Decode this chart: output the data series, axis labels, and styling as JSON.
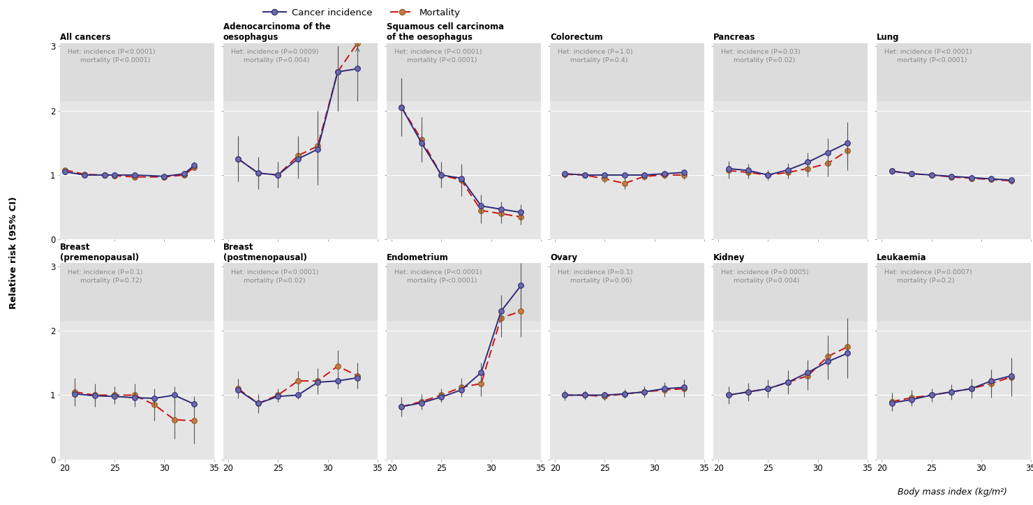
{
  "panels": [
    {
      "title": "All cancers",
      "het_text": "Het: incidence (P<0.0001)\n      mortality (P<0.0001)",
      "x": [
        20,
        22,
        24,
        25,
        27,
        30,
        32,
        33
      ],
      "inc_y": [
        1.05,
        1.0,
        1.0,
        1.0,
        1.0,
        0.98,
        1.02,
        1.15
      ],
      "inc_yerr_lo": [
        0.04,
        0.025,
        0.02,
        0.02,
        0.015,
        0.02,
        0.03,
        0.05
      ],
      "inc_yerr_hi": [
        0.04,
        0.025,
        0.02,
        0.02,
        0.015,
        0.02,
        0.03,
        0.05
      ],
      "mort_y": [
        1.08,
        1.01,
        1.0,
        0.99,
        0.97,
        0.97,
        1.0,
        1.12
      ],
      "mort_yerr_lo": [
        0.04,
        0.025,
        0.02,
        0.02,
        0.015,
        0.02,
        0.03,
        0.05
      ],
      "mort_yerr_hi": [
        0.04,
        0.025,
        0.02,
        0.02,
        0.015,
        0.02,
        0.03,
        0.05
      ],
      "row": 0,
      "col": 0
    },
    {
      "title": "Adenocarcinoma of the\noesophagus",
      "het_text": "Het: incidence (P=0.0009)\n      mortality (P=0.004)",
      "x": [
        21,
        23,
        25,
        27,
        29,
        31,
        33
      ],
      "inc_y": [
        1.25,
        1.03,
        1.0,
        1.25,
        1.4,
        2.6,
        2.65
      ],
      "inc_yerr_lo": [
        0.35,
        0.25,
        0.2,
        0.3,
        0.55,
        0.6,
        0.5
      ],
      "inc_yerr_hi": [
        0.35,
        0.25,
        0.2,
        0.3,
        0.55,
        0.4,
        0.4
      ],
      "mort_y": [
        1.25,
        1.03,
        1.0,
        1.3,
        1.45,
        2.6,
        3.05
      ],
      "mort_yerr_lo": [
        0.35,
        0.25,
        0.2,
        0.3,
        0.55,
        0.6,
        0.0
      ],
      "mort_yerr_hi": [
        0.35,
        0.25,
        0.2,
        0.3,
        0.55,
        0.4,
        0.0
      ],
      "mort_clipped": [
        false,
        false,
        false,
        false,
        false,
        false,
        true
      ],
      "row": 0,
      "col": 1
    },
    {
      "title": "Squamous cell carcinoma\nof the oesophagus",
      "het_text": "Het: incidence (P<0.0001)\n      mortality (P<0.0001)",
      "x": [
        21,
        23,
        25,
        27,
        29,
        31,
        33
      ],
      "inc_y": [
        2.05,
        1.5,
        1.0,
        0.95,
        0.52,
        0.47,
        0.42
      ],
      "inc_yerr_lo": [
        0.45,
        0.3,
        0.15,
        0.2,
        0.18,
        0.12,
        0.12
      ],
      "inc_yerr_hi": [
        0.45,
        0.3,
        0.15,
        0.2,
        0.18,
        0.12,
        0.12
      ],
      "mort_y": [
        2.05,
        1.55,
        1.0,
        0.92,
        0.45,
        0.4,
        0.35
      ],
      "mort_yerr_lo": [
        0.45,
        0.35,
        0.2,
        0.25,
        0.2,
        0.15,
        0.12
      ],
      "mort_yerr_hi": [
        0.45,
        0.35,
        0.2,
        0.25,
        0.2,
        0.15,
        0.12
      ],
      "row": 0,
      "col": 2
    },
    {
      "title": "Colorectum",
      "het_text": "Het: incidence (P=1.0)\n      mortality (P=0.4)",
      "x": [
        21,
        23,
        25,
        27,
        29,
        31,
        33
      ],
      "inc_y": [
        1.02,
        1.0,
        1.0,
        1.0,
        1.0,
        1.02,
        1.04
      ],
      "inc_yerr_lo": [
        0.04,
        0.03,
        0.025,
        0.025,
        0.03,
        0.04,
        0.05
      ],
      "inc_yerr_hi": [
        0.04,
        0.03,
        0.025,
        0.025,
        0.03,
        0.04,
        0.05
      ],
      "mort_y": [
        1.01,
        1.0,
        0.94,
        0.87,
        0.98,
        1.0,
        1.0
      ],
      "mort_yerr_lo": [
        0.05,
        0.04,
        0.06,
        0.09,
        0.06,
        0.06,
        0.07
      ],
      "mort_yerr_hi": [
        0.05,
        0.04,
        0.06,
        0.09,
        0.06,
        0.06,
        0.07
      ],
      "row": 0,
      "col": 3
    },
    {
      "title": "Pancreas",
      "het_text": "Het: incidence (P=0.03)\n      mortality (P=0.02)",
      "x": [
        21,
        23,
        25,
        27,
        29,
        31,
        33
      ],
      "inc_y": [
        1.1,
        1.07,
        1.0,
        1.08,
        1.2,
        1.35,
        1.5
      ],
      "inc_yerr_lo": [
        0.12,
        0.1,
        0.08,
        0.1,
        0.15,
        0.22,
        0.32
      ],
      "inc_yerr_hi": [
        0.12,
        0.1,
        0.08,
        0.1,
        0.15,
        0.22,
        0.32
      ],
      "mort_y": [
        1.07,
        1.04,
        1.0,
        1.04,
        1.1,
        1.18,
        1.38
      ],
      "mort_yerr_lo": [
        0.12,
        0.1,
        0.08,
        0.1,
        0.12,
        0.2,
        0.3
      ],
      "mort_yerr_hi": [
        0.12,
        0.1,
        0.08,
        0.1,
        0.12,
        0.2,
        0.3
      ],
      "row": 0,
      "col": 4
    },
    {
      "title": "Lung",
      "het_text": "Het: incidence (P<0.0001)\n      mortality (P<0.0001)",
      "x": [
        21,
        23,
        25,
        27,
        29,
        31,
        33
      ],
      "inc_y": [
        1.06,
        1.02,
        1.0,
        0.98,
        0.96,
        0.94,
        0.92
      ],
      "inc_yerr_lo": [
        0.05,
        0.04,
        0.03,
        0.03,
        0.04,
        0.04,
        0.05
      ],
      "inc_yerr_hi": [
        0.05,
        0.04,
        0.03,
        0.03,
        0.04,
        0.04,
        0.05
      ],
      "mort_y": [
        1.06,
        1.02,
        1.0,
        0.97,
        0.95,
        0.93,
        0.91
      ],
      "mort_yerr_lo": [
        0.05,
        0.04,
        0.03,
        0.03,
        0.04,
        0.04,
        0.05
      ],
      "mort_yerr_hi": [
        0.05,
        0.04,
        0.03,
        0.03,
        0.04,
        0.04,
        0.05
      ],
      "row": 0,
      "col": 5
    },
    {
      "title": "Breast\n(premenopausal)",
      "het_text": "Het: incidence (P=0.1)\n      mortality (P=0.72)",
      "x": [
        21,
        23,
        25,
        27,
        29,
        31,
        33
      ],
      "inc_y": [
        1.02,
        0.99,
        0.98,
        0.96,
        0.95,
        1.0,
        0.86
      ],
      "inc_yerr_lo": [
        0.18,
        0.12,
        0.1,
        0.1,
        0.12,
        0.14,
        0.12
      ],
      "inc_yerr_hi": [
        0.18,
        0.12,
        0.1,
        0.1,
        0.12,
        0.14,
        0.12
      ],
      "mort_y": [
        1.05,
        1.0,
        1.0,
        1.0,
        0.85,
        0.62,
        0.6
      ],
      "mort_yerr_lo": [
        0.22,
        0.18,
        0.14,
        0.18,
        0.25,
        0.3,
        0.35
      ],
      "mort_yerr_hi": [
        0.22,
        0.18,
        0.14,
        0.18,
        0.25,
        0.3,
        0.35
      ],
      "row": 1,
      "col": 0
    },
    {
      "title": "Breast\n(postmenopausal)",
      "het_text": "Het: incidence (P<0.0001)\n      mortality (P=0.02)",
      "x": [
        21,
        23,
        25,
        27,
        29,
        31,
        33
      ],
      "inc_y": [
        1.08,
        0.87,
        0.98,
        1.0,
        1.2,
        1.22,
        1.27
      ],
      "inc_yerr_lo": [
        0.1,
        0.12,
        0.08,
        0.06,
        0.12,
        0.12,
        0.15
      ],
      "inc_yerr_hi": [
        0.1,
        0.12,
        0.08,
        0.06,
        0.12,
        0.12,
        0.15
      ],
      "mort_y": [
        1.1,
        0.87,
        1.0,
        1.22,
        1.22,
        1.45,
        1.3
      ],
      "mort_yerr_lo": [
        0.15,
        0.15,
        0.1,
        0.15,
        0.2,
        0.25,
        0.2
      ],
      "mort_yerr_hi": [
        0.15,
        0.15,
        0.1,
        0.15,
        0.2,
        0.25,
        0.2
      ],
      "row": 1,
      "col": 1
    },
    {
      "title": "Endometrium",
      "het_text": "Het: incidence (P<0.0001)\n      mortality (P<0.0001)",
      "x": [
        21,
        23,
        25,
        27,
        29,
        31,
        33
      ],
      "inc_y": [
        0.82,
        0.88,
        0.97,
        1.08,
        1.35,
        2.3,
        2.7
      ],
      "inc_yerr_lo": [
        0.12,
        0.1,
        0.08,
        0.1,
        0.15,
        0.25,
        0.35
      ],
      "inc_yerr_hi": [
        0.12,
        0.1,
        0.08,
        0.1,
        0.15,
        0.25,
        0.35
      ],
      "mort_y": [
        0.82,
        0.9,
        1.0,
        1.12,
        1.18,
        2.2,
        2.3
      ],
      "mort_yerr_lo": [
        0.15,
        0.12,
        0.1,
        0.15,
        0.2,
        0.3,
        0.4
      ],
      "mort_yerr_hi": [
        0.15,
        0.12,
        0.1,
        0.15,
        0.2,
        0.3,
        0.4
      ],
      "row": 1,
      "col": 2
    },
    {
      "title": "Ovary",
      "het_text": "Het: incidence (P=0.1)\n      mortality (P=0.06)",
      "x": [
        21,
        23,
        25,
        27,
        29,
        31,
        33
      ],
      "inc_y": [
        1.0,
        1.0,
        1.0,
        1.02,
        1.05,
        1.1,
        1.12
      ],
      "inc_yerr_lo": [
        0.07,
        0.06,
        0.05,
        0.06,
        0.08,
        0.1,
        0.12
      ],
      "inc_yerr_hi": [
        0.07,
        0.06,
        0.05,
        0.06,
        0.08,
        0.1,
        0.12
      ],
      "mort_y": [
        1.0,
        1.0,
        0.98,
        1.02,
        1.05,
        1.08,
        1.1
      ],
      "mort_yerr_lo": [
        0.08,
        0.07,
        0.06,
        0.07,
        0.09,
        0.11,
        0.13
      ],
      "mort_yerr_hi": [
        0.08,
        0.07,
        0.06,
        0.07,
        0.09,
        0.11,
        0.13
      ],
      "row": 1,
      "col": 3
    },
    {
      "title": "Kidney",
      "het_text": "Het: incidence (P=0.0005)\n      mortality (P=0.004)",
      "x": [
        21,
        23,
        25,
        27,
        29,
        31,
        33
      ],
      "inc_y": [
        1.0,
        1.05,
        1.1,
        1.2,
        1.35,
        1.52,
        1.65
      ],
      "inc_yerr_lo": [
        0.12,
        0.12,
        0.12,
        0.15,
        0.2,
        0.28,
        0.38
      ],
      "inc_yerr_hi": [
        0.12,
        0.12,
        0.12,
        0.15,
        0.2,
        0.28,
        0.38
      ],
      "mort_y": [
        1.0,
        1.05,
        1.1,
        1.2,
        1.3,
        1.6,
        1.75
      ],
      "mort_yerr_lo": [
        0.14,
        0.14,
        0.14,
        0.18,
        0.22,
        0.33,
        0.45
      ],
      "mort_yerr_hi": [
        0.14,
        0.14,
        0.14,
        0.18,
        0.22,
        0.33,
        0.45
      ],
      "row": 1,
      "col": 4
    },
    {
      "title": "Leukaemia",
      "het_text": "Het: incidence (P=0.0007)\n      mortality (P=0.2)",
      "x": [
        21,
        23,
        25,
        27,
        29,
        31,
        33
      ],
      "inc_y": [
        0.88,
        0.93,
        1.0,
        1.05,
        1.1,
        1.22,
        1.3
      ],
      "inc_yerr_lo": [
        0.12,
        0.1,
        0.08,
        0.1,
        0.12,
        0.18,
        0.25
      ],
      "inc_yerr_hi": [
        0.12,
        0.1,
        0.08,
        0.1,
        0.12,
        0.18,
        0.25
      ],
      "mort_y": [
        0.9,
        0.96,
        1.0,
        1.05,
        1.1,
        1.18,
        1.28
      ],
      "mort_yerr_lo": [
        0.14,
        0.12,
        0.1,
        0.12,
        0.15,
        0.22,
        0.3
      ],
      "mort_yerr_hi": [
        0.14,
        0.12,
        0.1,
        0.12,
        0.15,
        0.22,
        0.3
      ],
      "row": 1,
      "col": 5
    }
  ],
  "inc_line_color": "#2e2a7a",
  "mort_line_color": "#cc1111",
  "inc_marker_face": "#6b6aaa",
  "inc_marker_edge": "#2e2a7a",
  "mort_marker_face": "#c87941",
  "mort_marker_edge": "#8b5a20",
  "err_color": "#555555",
  "panel_bg_top": "#dcdcdc",
  "panel_bg_bot": "#e5e5e5",
  "grid_line_color": "#ffffff",
  "xlabel": "Body mass index (kg/m²)",
  "ylabel": "Relative risk (95% CI)",
  "legend_inc": "Cancer incidence",
  "legend_mort": "Mortality",
  "ylim": [
    0,
    3.05
  ],
  "yticks": [
    0,
    1,
    2,
    3
  ],
  "xlim": [
    19.5,
    34.5
  ],
  "xticks": [
    20,
    25,
    30,
    35
  ],
  "fig_width": 14.8,
  "fig_height": 7.24
}
